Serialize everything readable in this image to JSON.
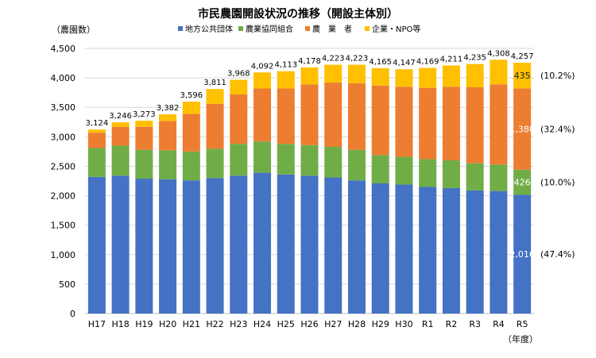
{
  "chart_data": {
    "type": "bar",
    "stacked": true,
    "title": "市民農園開設状況の推移（開設主体別）",
    "ylabel": "（農園数）",
    "xlabel": "（年度）",
    "ylim": [
      0,
      4500
    ],
    "yticks": [
      0,
      500,
      1000,
      1500,
      2000,
      2500,
      3000,
      3500,
      4000,
      4500
    ],
    "ytick_labels": [
      "0",
      "500",
      "1,000",
      "1,500",
      "2,000",
      "2,500",
      "3,000",
      "3,500",
      "4,000",
      "4,500"
    ],
    "categories": [
      "H17",
      "H18",
      "H19",
      "H20",
      "H21",
      "H22",
      "H23",
      "H24",
      "H25",
      "H26",
      "H27",
      "H28",
      "H29",
      "H30",
      "R1",
      "R2",
      "R3",
      "R4",
      "R5"
    ],
    "series": [
      {
        "name": "地方公共団体",
        "color": "#4472C4",
        "values": [
          2320,
          2340,
          2290,
          2280,
          2260,
          2300,
          2340,
          2390,
          2360,
          2340,
          2310,
          2260,
          2210,
          2190,
          2150,
          2130,
          2090,
          2080,
          2016
        ]
      },
      {
        "name": "農業協同組合",
        "color": "#70AD47",
        "values": [
          490,
          510,
          490,
          490,
          490,
          500,
          540,
          530,
          520,
          520,
          520,
          520,
          480,
          470,
          470,
          470,
          460,
          450,
          426
        ]
      },
      {
        "name": "農　業　者",
        "color": "#ED7D31",
        "values": [
          260,
          320,
          390,
          500,
          640,
          760,
          840,
          900,
          940,
          1030,
          1090,
          1130,
          1180,
          1190,
          1210,
          1250,
          1290,
          1360,
          1380
        ]
      },
      {
        "name": "企業・NPO等",
        "color": "#FFC000",
        "values": [
          54,
          76,
          103,
          112,
          206,
          251,
          248,
          272,
          293,
          288,
          303,
          313,
          295,
          297,
          339,
          361,
          395,
          418,
          435
        ]
      }
    ],
    "totals": [
      3124,
      3246,
      3273,
      3382,
      3596,
      3811,
      3968,
      4092,
      4113,
      4178,
      4223,
      4223,
      4165,
      4147,
      4169,
      4211,
      4235,
      4308,
      4257
    ],
    "total_labels": [
      "3,124",
      "3,246",
      "3,273",
      "3,382",
      "3,596",
      "3,811",
      "3,968",
      "4,092",
      "4,113",
      "4,178",
      "4,223",
      "4,223",
      "4,165",
      "4,147",
      "4,169",
      "4,211",
      "4,235",
      "4,308",
      "4,257"
    ],
    "last_bar_labels": [
      "2,016",
      "426",
      "1,380",
      "435"
    ],
    "last_bar_percentages": [
      "(47.4%)",
      "(10.0%)",
      "(32.4%)",
      "(10.2%)"
    ],
    "legend_position": "top-center"
  }
}
